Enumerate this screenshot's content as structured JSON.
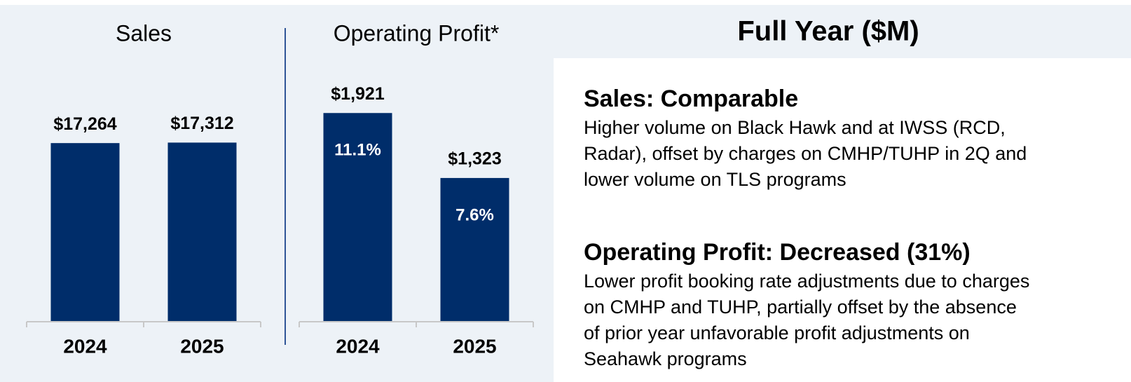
{
  "chart_data": [
    {
      "type": "bar",
      "title": "Sales",
      "categories": [
        "2024",
        "2025"
      ],
      "values": [
        17264,
        17312
      ],
      "value_labels": [
        "$17,264",
        "$17,312"
      ],
      "color": "#002d6a",
      "ylim": [
        0,
        21000
      ]
    },
    {
      "type": "bar",
      "title": "Operating Profit*",
      "categories": [
        "2024",
        "2025"
      ],
      "values": [
        1921,
        1323
      ],
      "value_labels": [
        "$1,921",
        "$1,323"
      ],
      "inner_values": [
        11.1,
        7.6
      ],
      "inner_value_labels": [
        "11.1%",
        "7.6%"
      ],
      "color": "#002d6a",
      "ylim": [
        0,
        2000
      ]
    }
  ],
  "panel": {
    "title": "Full Year ($M)",
    "sections": [
      {
        "heading": "Sales: Comparable",
        "lines": [
          "Higher volume on Black Hawk and at IWSS (RCD,",
          "Radar), offset by charges on CMHP/TUHP in 2Q and",
          "lower volume on TLS programs"
        ]
      },
      {
        "heading": "Operating Profit: Decreased (31%)",
        "lines": [
          "Lower profit booking rate adjustments due to charges",
          "on CMHP and TUHP, partially offset by the absence",
          "of prior year unfavorable profit adjustments on",
          "Seahawk programs"
        ]
      }
    ]
  }
}
